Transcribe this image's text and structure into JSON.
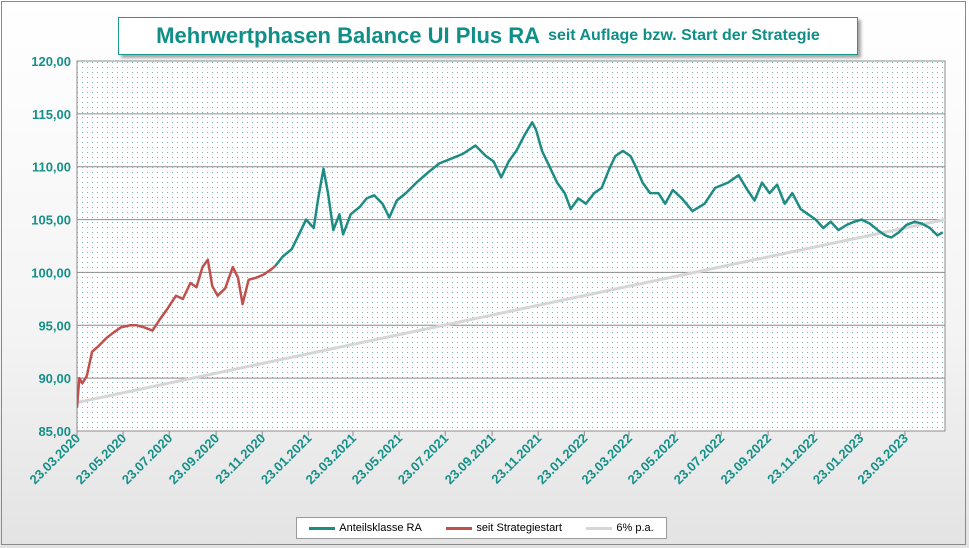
{
  "title": {
    "main": "Mehrwertphasen Balance UI Plus RA",
    "sub": "seit Auflage bzw. Start der Strategie"
  },
  "colors": {
    "teal": "#1e8c84",
    "red": "#c0504d",
    "benchmark": "#d6d6d6",
    "grid": "#8c8c8c",
    "text": "#159088"
  },
  "chart_data": {
    "type": "line",
    "title": "Mehrwertphasen Balance UI Plus RA seit Auflage bzw. Start der Strategie",
    "xlabel": "",
    "ylabel": "",
    "ylim": [
      85,
      120
    ],
    "xlim": [
      "2020-03-23",
      "2023-05-15"
    ],
    "y_ticks": [
      "85,00",
      "90,00",
      "95,00",
      "100,00",
      "105,00",
      "110,00",
      "115,00",
      "120,00"
    ],
    "x_ticks": [
      "23.03.2020",
      "23.05.2020",
      "23.07.2020",
      "23.09.2020",
      "23.11.2020",
      "23.01.2021",
      "23.03.2021",
      "23.05.2021",
      "23.07.2021",
      "23.09.2021",
      "23.11.2021",
      "23.01.2022",
      "23.03.2022",
      "23.05.2022",
      "23.07.2022",
      "23.09.2022",
      "23.11.2022",
      "23.01.2023",
      "23.03.2023"
    ],
    "grid": true,
    "legend_position": "bottom",
    "series": [
      {
        "name": "Anteilsklasse RA",
        "color": "#1e8c84",
        "points": [
          [
            "2020-12-10",
            100.6
          ],
          [
            "2020-12-20",
            101.5
          ],
          [
            "2021-01-01",
            102.2
          ],
          [
            "2021-01-10",
            103.5
          ],
          [
            "2021-01-20",
            105.0
          ],
          [
            "2021-01-30",
            104.2
          ],
          [
            "2021-02-05",
            107.0
          ],
          [
            "2021-02-12",
            109.8
          ],
          [
            "2021-02-18",
            107.5
          ],
          [
            "2021-02-25",
            104.0
          ],
          [
            "2021-03-05",
            105.5
          ],
          [
            "2021-03-10",
            103.6
          ],
          [
            "2021-03-20",
            105.5
          ],
          [
            "2021-04-01",
            106.2
          ],
          [
            "2021-04-10",
            107.0
          ],
          [
            "2021-04-20",
            107.3
          ],
          [
            "2021-05-01",
            106.5
          ],
          [
            "2021-05-10",
            105.2
          ],
          [
            "2021-05-20",
            106.8
          ],
          [
            "2021-06-01",
            107.5
          ],
          [
            "2021-06-15",
            108.5
          ],
          [
            "2021-07-01",
            109.5
          ],
          [
            "2021-07-15",
            110.3
          ],
          [
            "2021-08-01",
            110.8
          ],
          [
            "2021-08-15",
            111.2
          ],
          [
            "2021-09-01",
            112.0
          ],
          [
            "2021-09-15",
            111.0
          ],
          [
            "2021-09-25",
            110.5
          ],
          [
            "2021-10-05",
            109.0
          ],
          [
            "2021-10-15",
            110.5
          ],
          [
            "2021-10-25",
            111.5
          ],
          [
            "2021-11-05",
            113.0
          ],
          [
            "2021-11-15",
            114.2
          ],
          [
            "2021-11-20",
            113.5
          ],
          [
            "2021-11-28",
            111.5
          ],
          [
            "2021-12-08",
            110.0
          ],
          [
            "2021-12-18",
            108.5
          ],
          [
            "2021-12-28",
            107.5
          ],
          [
            "2022-01-05",
            106.0
          ],
          [
            "2022-01-15",
            107.0
          ],
          [
            "2022-01-25",
            106.5
          ],
          [
            "2022-02-05",
            107.5
          ],
          [
            "2022-02-15",
            108.0
          ],
          [
            "2022-02-25",
            109.8
          ],
          [
            "2022-03-05",
            111.0
          ],
          [
            "2022-03-15",
            111.5
          ],
          [
            "2022-03-25",
            111.0
          ],
          [
            "2022-04-01",
            110.0
          ],
          [
            "2022-04-10",
            108.5
          ],
          [
            "2022-04-20",
            107.5
          ],
          [
            "2022-05-01",
            107.5
          ],
          [
            "2022-05-10",
            106.5
          ],
          [
            "2022-05-20",
            107.8
          ],
          [
            "2022-06-01",
            107.0
          ],
          [
            "2022-06-15",
            105.8
          ],
          [
            "2022-07-01",
            106.5
          ],
          [
            "2022-07-15",
            108.0
          ],
          [
            "2022-08-01",
            108.5
          ],
          [
            "2022-08-15",
            109.2
          ],
          [
            "2022-08-25",
            108.0
          ],
          [
            "2022-09-05",
            106.8
          ],
          [
            "2022-09-15",
            108.5
          ],
          [
            "2022-09-25",
            107.5
          ],
          [
            "2022-10-05",
            108.3
          ],
          [
            "2022-10-15",
            106.5
          ],
          [
            "2022-10-25",
            107.5
          ],
          [
            "2022-11-05",
            106.0
          ],
          [
            "2022-11-15",
            105.5
          ],
          [
            "2022-11-25",
            105.0
          ],
          [
            "2022-12-05",
            104.2
          ],
          [
            "2022-12-15",
            104.8
          ],
          [
            "2022-12-25",
            104.0
          ],
          [
            "2023-01-05",
            104.5
          ],
          [
            "2023-01-15",
            104.8
          ],
          [
            "2023-01-25",
            105.0
          ],
          [
            "2023-02-05",
            104.6
          ],
          [
            "2023-02-15",
            104.0
          ],
          [
            "2023-02-25",
            103.5
          ],
          [
            "2023-03-05",
            103.3
          ],
          [
            "2023-03-15",
            103.8
          ],
          [
            "2023-03-25",
            104.5
          ],
          [
            "2023-04-05",
            104.8
          ],
          [
            "2023-04-15",
            104.6
          ],
          [
            "2023-04-25",
            104.2
          ],
          [
            "2023-05-05",
            103.5
          ],
          [
            "2023-05-12",
            103.8
          ]
        ]
      },
      {
        "name": "seit Strategiestart",
        "color": "#c0504d",
        "points": [
          [
            "2020-03-23",
            87.2
          ],
          [
            "2020-03-26",
            90.0
          ],
          [
            "2020-03-30",
            89.5
          ],
          [
            "2020-04-05",
            90.2
          ],
          [
            "2020-04-12",
            92.5
          ],
          [
            "2020-04-20",
            93.0
          ],
          [
            "2020-05-01",
            93.8
          ],
          [
            "2020-05-10",
            94.3
          ],
          [
            "2020-05-20",
            94.8
          ],
          [
            "2020-06-01",
            95.0
          ],
          [
            "2020-06-10",
            95.0
          ],
          [
            "2020-06-20",
            94.8
          ],
          [
            "2020-07-01",
            94.5
          ],
          [
            "2020-07-10",
            95.5
          ],
          [
            "2020-07-20",
            96.5
          ],
          [
            "2020-08-01",
            97.8
          ],
          [
            "2020-08-10",
            97.5
          ],
          [
            "2020-08-20",
            99.0
          ],
          [
            "2020-08-28",
            98.6
          ],
          [
            "2020-09-05",
            100.5
          ],
          [
            "2020-09-12",
            101.2
          ],
          [
            "2020-09-18",
            98.7
          ],
          [
            "2020-09-25",
            97.8
          ],
          [
            "2020-10-05",
            98.5
          ],
          [
            "2020-10-15",
            100.5
          ],
          [
            "2020-10-22",
            99.5
          ],
          [
            "2020-10-28",
            97.0
          ],
          [
            "2020-11-05",
            99.3
          ],
          [
            "2020-11-15",
            99.5
          ],
          [
            "2020-11-25",
            99.8
          ],
          [
            "2020-12-05",
            100.3
          ],
          [
            "2020-12-10",
            100.6
          ]
        ]
      },
      {
        "name": "6% p.a.",
        "color": "#d6d6d6",
        "points": [
          [
            "2020-03-23",
            87.7
          ],
          [
            "2023-05-15",
            105.0
          ]
        ]
      }
    ]
  },
  "legend": [
    {
      "label": "Anteilsklasse RA",
      "color": "#1e8c84"
    },
    {
      "label": "seit Strategiestart",
      "color": "#c0504d"
    },
    {
      "label": "6% p.a.",
      "color": "#d6d6d6"
    }
  ]
}
